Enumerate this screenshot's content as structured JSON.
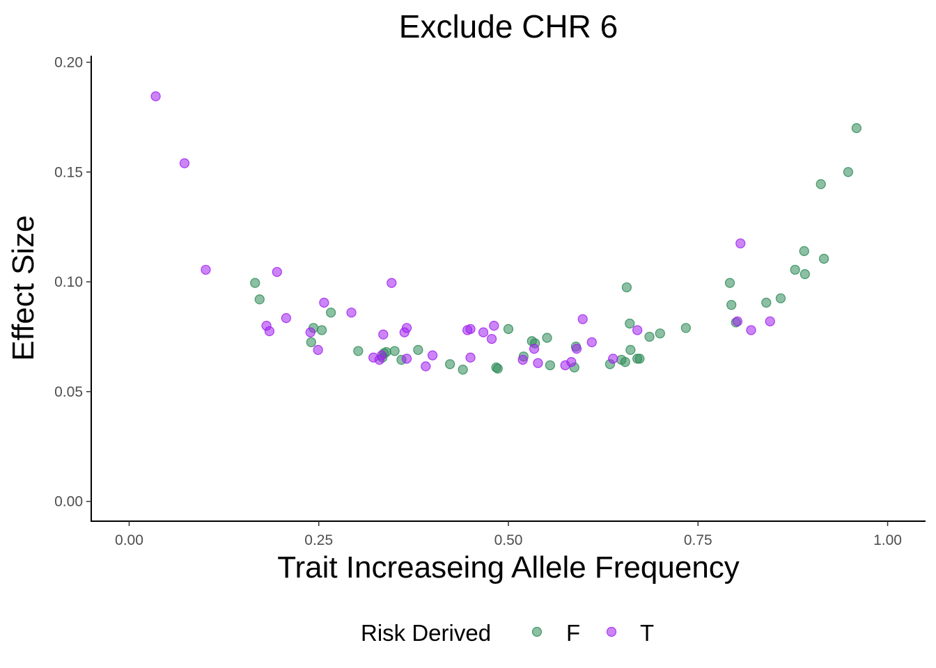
{
  "chart_data": {
    "type": "scatter",
    "title": "Exclude CHR 6",
    "xlabel": "Trait Increaseing Allele Frequency",
    "ylabel": "Effect Size",
    "xlim": [
      -0.05,
      1.05
    ],
    "ylim": [
      -0.009,
      0.203
    ],
    "xticks": [
      0.0,
      0.25,
      0.5,
      0.75,
      1.0
    ],
    "xtick_labels": [
      "0.00",
      "0.25",
      "0.50",
      "0.75",
      "1.00"
    ],
    "yticks": [
      0.0,
      0.05,
      0.1,
      0.15,
      0.2
    ],
    "ytick_labels": [
      "0.00",
      "0.05",
      "0.10",
      "0.15",
      "0.20"
    ],
    "grid": false,
    "legend": {
      "title": "Risk Derived",
      "position": "bottom",
      "entries": [
        "F",
        "T"
      ]
    },
    "series": [
      {
        "name": "F",
        "color": "#2e8b57",
        "points": [
          [
            0.166,
            0.0995
          ],
          [
            0.172,
            0.092
          ],
          [
            0.24,
            0.0725
          ],
          [
            0.243,
            0.079
          ],
          [
            0.254,
            0.078
          ],
          [
            0.266,
            0.086
          ],
          [
            0.302,
            0.0685
          ],
          [
            0.334,
            0.0655
          ],
          [
            0.336,
            0.0675
          ],
          [
            0.339,
            0.068
          ],
          [
            0.35,
            0.0685
          ],
          [
            0.359,
            0.0645
          ],
          [
            0.381,
            0.069
          ],
          [
            0.423,
            0.0625
          ],
          [
            0.44,
            0.06
          ],
          [
            0.484,
            0.061
          ],
          [
            0.486,
            0.0605
          ],
          [
            0.5,
            0.0785
          ],
          [
            0.52,
            0.066
          ],
          [
            0.531,
            0.073
          ],
          [
            0.535,
            0.072
          ],
          [
            0.551,
            0.0745
          ],
          [
            0.555,
            0.062
          ],
          [
            0.587,
            0.061
          ],
          [
            0.589,
            0.0705
          ],
          [
            0.634,
            0.0625
          ],
          [
            0.649,
            0.0645
          ],
          [
            0.654,
            0.0635
          ],
          [
            0.656,
            0.0975
          ],
          [
            0.66,
            0.081
          ],
          [
            0.661,
            0.069
          ],
          [
            0.67,
            0.065
          ],
          [
            0.673,
            0.065
          ],
          [
            0.686,
            0.075
          ],
          [
            0.7,
            0.0765
          ],
          [
            0.734,
            0.079
          ],
          [
            0.792,
            0.0995
          ],
          [
            0.794,
            0.0895
          ],
          [
            0.8,
            0.0815
          ],
          [
            0.84,
            0.0905
          ],
          [
            0.859,
            0.0925
          ],
          [
            0.878,
            0.1055
          ],
          [
            0.89,
            0.114
          ],
          [
            0.891,
            0.1035
          ],
          [
            0.912,
            0.1445
          ],
          [
            0.916,
            0.1105
          ],
          [
            0.948,
            0.15
          ],
          [
            0.959,
            0.17
          ]
        ]
      },
      {
        "name": "T",
        "color": "#a020f0",
        "points": [
          [
            0.035,
            0.1845
          ],
          [
            0.073,
            0.154
          ],
          [
            0.101,
            0.1055
          ],
          [
            0.181,
            0.08
          ],
          [
            0.185,
            0.0775
          ],
          [
            0.195,
            0.1045
          ],
          [
            0.207,
            0.0835
          ],
          [
            0.239,
            0.077
          ],
          [
            0.249,
            0.069
          ],
          [
            0.257,
            0.0905
          ],
          [
            0.293,
            0.086
          ],
          [
            0.322,
            0.0655
          ],
          [
            0.33,
            0.0645
          ],
          [
            0.333,
            0.0665
          ],
          [
            0.335,
            0.076
          ],
          [
            0.346,
            0.0995
          ],
          [
            0.363,
            0.077
          ],
          [
            0.366,
            0.079
          ],
          [
            0.366,
            0.065
          ],
          [
            0.391,
            0.0615
          ],
          [
            0.4,
            0.0665
          ],
          [
            0.446,
            0.078
          ],
          [
            0.45,
            0.0785
          ],
          [
            0.45,
            0.0655
          ],
          [
            0.467,
            0.077
          ],
          [
            0.478,
            0.074
          ],
          [
            0.481,
            0.08
          ],
          [
            0.519,
            0.0645
          ],
          [
            0.534,
            0.0695
          ],
          [
            0.539,
            0.063
          ],
          [
            0.575,
            0.062
          ],
          [
            0.583,
            0.0635
          ],
          [
            0.59,
            0.0695
          ],
          [
            0.598,
            0.083
          ],
          [
            0.61,
            0.0725
          ],
          [
            0.638,
            0.065
          ],
          [
            0.67,
            0.078
          ],
          [
            0.802,
            0.082
          ],
          [
            0.806,
            0.1175
          ],
          [
            0.82,
            0.078
          ],
          [
            0.845,
            0.082
          ]
        ]
      }
    ]
  }
}
